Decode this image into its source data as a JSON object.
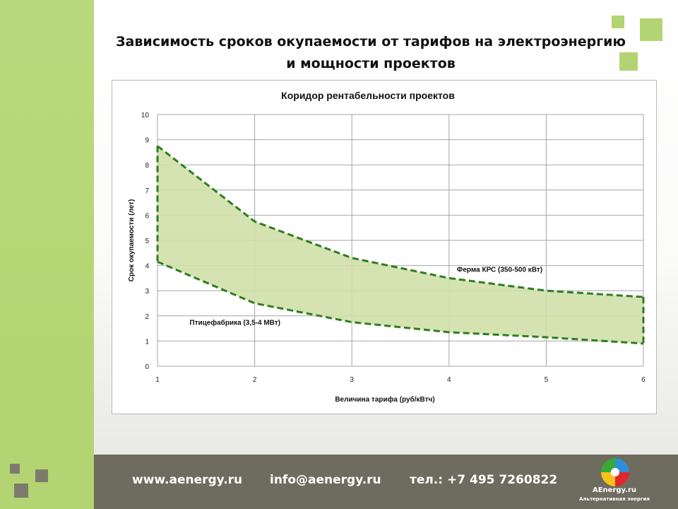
{
  "slide": {
    "title_line1": "Зависимость сроков окупаемости от тарифов на электроэнергию",
    "title_line2": "и мощности проектов"
  },
  "footer": {
    "website": "www.aenergy.ru",
    "email": "info@aenergy.ru",
    "phone": "тел.: +7 495 7260822",
    "logo_name": "AEnergy.ru",
    "logo_tagline": "Альтернативная энергия"
  },
  "colors": {
    "band_green": "#b3d472",
    "footer_gray": "#6e6b5f",
    "series_green": "#2e7d1f",
    "fill_green": "#cfe0a8"
  },
  "chart_data": {
    "type": "area",
    "title": "Коридор рентабельности  проектов",
    "xlabel": "Величина тарифа (руб/кВтч)",
    "ylabel": "Срок окупаемости (лет)",
    "x": [
      1,
      2,
      3,
      4,
      5,
      6
    ],
    "xlim": [
      1,
      6
    ],
    "ylim": [
      0,
      10
    ],
    "yticks": [
      0,
      1,
      2,
      3,
      4,
      5,
      6,
      7,
      8,
      9,
      10
    ],
    "grid": true,
    "legend": "none",
    "series": [
      {
        "name": "Ферма КРС (350-500 кВт)",
        "values": [
          8.75,
          5.75,
          4.3,
          3.5,
          3.0,
          2.75
        ]
      },
      {
        "name": "Птицефабрика (3,5-4 МВт)",
        "values": [
          4.15,
          2.5,
          1.75,
          1.35,
          1.15,
          0.9
        ]
      }
    ]
  }
}
